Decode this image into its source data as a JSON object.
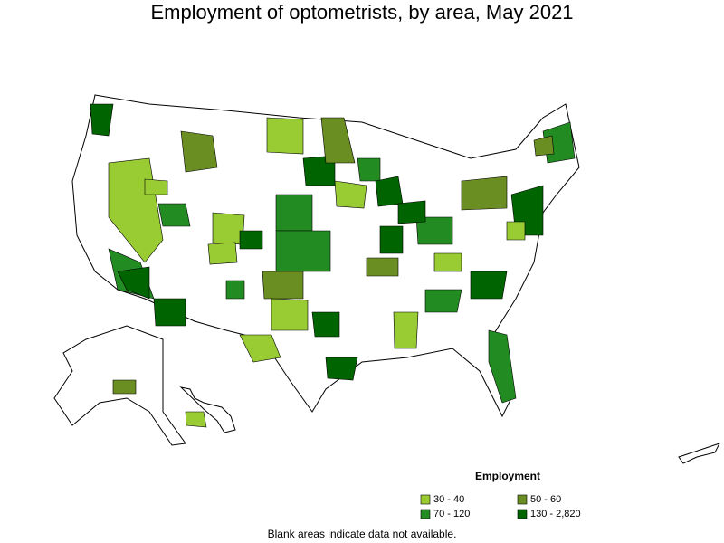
{
  "title": "Employment of optometrists, by area, May 2021",
  "legend": {
    "title": "Employment",
    "items": [
      {
        "label": "30 - 40",
        "color": "#99cc33"
      },
      {
        "label": "50 - 60",
        "color": "#6b8e23"
      },
      {
        "label": "70 - 120",
        "color": "#228b22"
      },
      {
        "label": "130 - 2,820",
        "color": "#006400"
      }
    ]
  },
  "note": "Blank areas indicate data not available."
}
